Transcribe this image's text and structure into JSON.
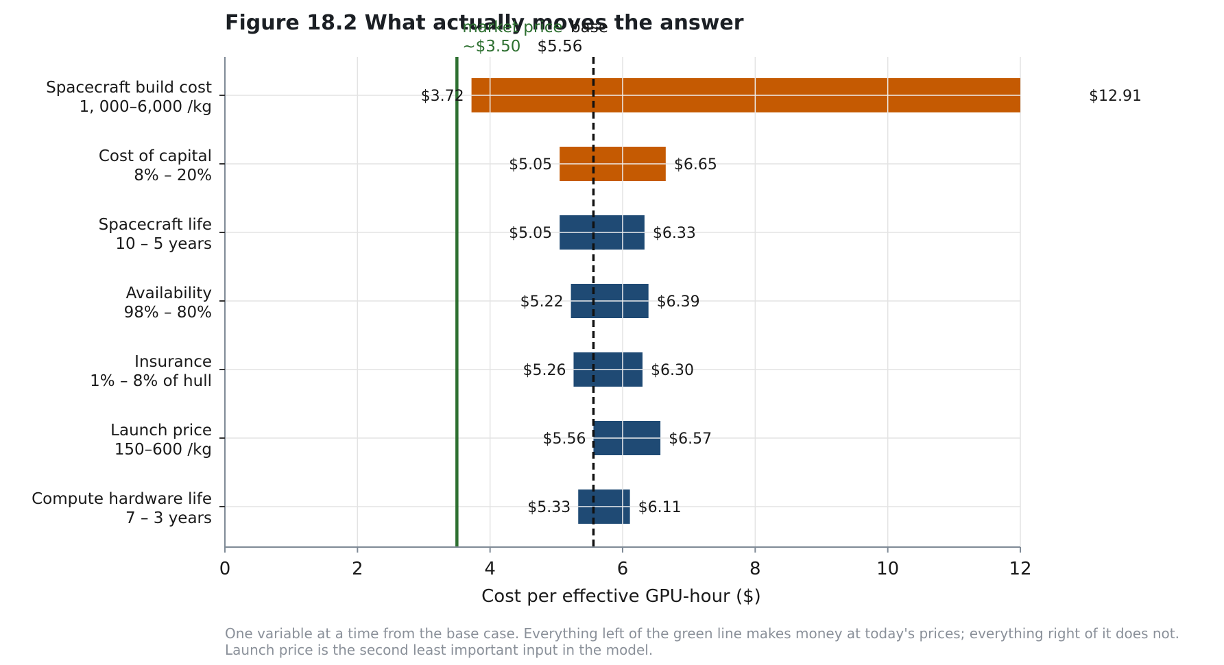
{
  "chart_data": {
    "type": "bar",
    "subtype": "tornado",
    "title": "Figure 18.2  What actually moves the answer",
    "xlabel": "Cost per effective GPU-hour ($)",
    "xlim": [
      0,
      12
    ],
    "xticks": [
      "0",
      "2",
      "4",
      "6",
      "8",
      "10",
      "12"
    ],
    "grid": true,
    "base_value": 5.56,
    "base_label": "base",
    "base_value_label": "$5.56",
    "reference_value": 3.5,
    "reference_label": "market price",
    "reference_value_label": "~$3.50",
    "bars": [
      {
        "name": "Spacecraft build cost",
        "range": "1, 000–6,000 /kg",
        "low": 3.72,
        "high": 12.91,
        "low_label": "$3.72",
        "high_label": "$12.91",
        "color": "#c55a02"
      },
      {
        "name": "Cost of capital",
        "range": "8% – 20%",
        "low": 5.05,
        "high": 6.65,
        "low_label": "$5.05",
        "high_label": "$6.65",
        "color": "#c55a02"
      },
      {
        "name": "Spacecraft life",
        "range": "10 – 5 years",
        "low": 5.05,
        "high": 6.33,
        "low_label": "$5.05",
        "high_label": "$6.33",
        "color": "#1f4a74"
      },
      {
        "name": "Availability",
        "range": "98% – 80%",
        "low": 5.22,
        "high": 6.39,
        "low_label": "$5.22",
        "high_label": "$6.39",
        "color": "#1f4a74"
      },
      {
        "name": "Insurance",
        "range": "1% – 8% of hull",
        "low": 5.26,
        "high": 6.3,
        "low_label": "$5.26",
        "high_label": "$6.30",
        "color": "#1f4a74"
      },
      {
        "name": "Launch price",
        "range": "150–600 /kg",
        "low": 5.56,
        "high": 6.57,
        "low_label": "$5.56",
        "high_label": "$6.57",
        "color": "#1f4a74"
      },
      {
        "name": "Compute hardware life",
        "range": "7 – 3 years",
        "low": 5.33,
        "high": 6.11,
        "low_label": "$5.33",
        "high_label": "$6.11",
        "color": "#1f4a74"
      }
    ],
    "colors": {
      "reference_line": "#2e7031",
      "base_line": "#111111",
      "grid": "#e3e3e3",
      "axis": "#7f8a96"
    }
  },
  "footnote": "One variable at a time from the base case. Everything left of the green line makes money at today's prices; everything right of it does not. Launch price is the second least important input in the model."
}
